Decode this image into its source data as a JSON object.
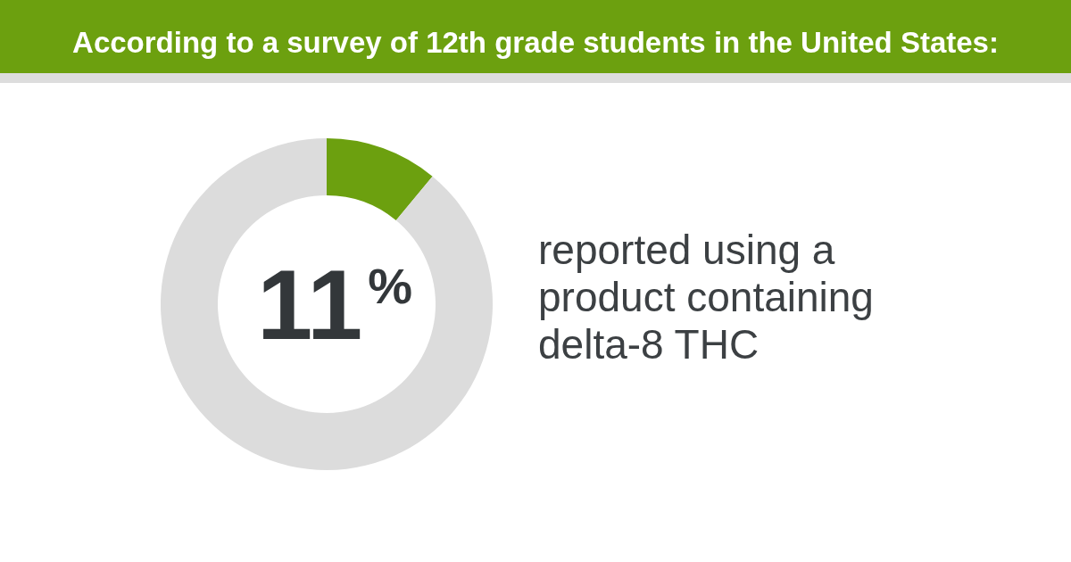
{
  "chart_data": {
    "type": "donut",
    "title": "According to a survey of 12th grade students in the United States:",
    "categories": [
      null,
      null
    ],
    "values": [
      11,
      89
    ],
    "colors": [
      "#6ca00f",
      "#dcdcdc"
    ],
    "annotations": [
      "11$^{%}$",
      "reported using a product containing delta-8 THC"
    ]
  }
}
